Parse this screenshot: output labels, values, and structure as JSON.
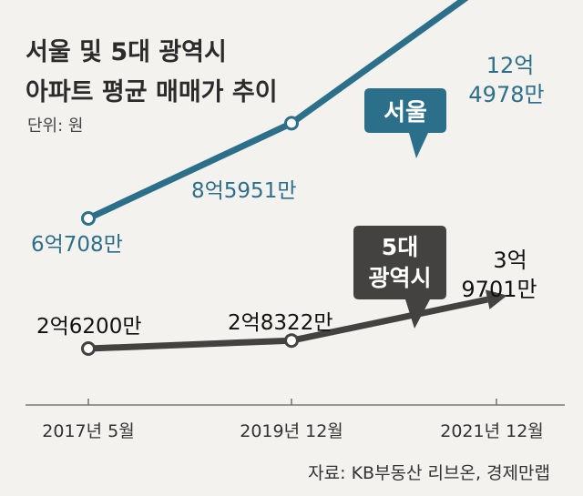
{
  "chart_data": {
    "type": "line",
    "title_lines": [
      "서울 및 5대 광역시",
      "아파트 평균 매매가 추이"
    ],
    "unit": "단위: 원",
    "categories": [
      "2017년 5월",
      "2019년 12월",
      "2021년 12월"
    ],
    "series": [
      {
        "name": "서울",
        "values": [
          607080000,
          859510000,
          1249780000
        ],
        "labels": [
          "6억708만",
          "8억5951만",
          "12억\n4978만"
        ]
      },
      {
        "name": "5대\n광역시",
        "values": [
          262000000,
          283220000,
          397010000
        ],
        "labels": [
          "2억6200만",
          "2억8322만",
          "3억\n9701만"
        ]
      }
    ],
    "source": "자료: KB부동산 리브온, 경제만랩",
    "colors": {
      "seoul": "#2c6f8a",
      "metro": "#434241",
      "axis": "#777777",
      "background": "#f3f2ee"
    }
  }
}
